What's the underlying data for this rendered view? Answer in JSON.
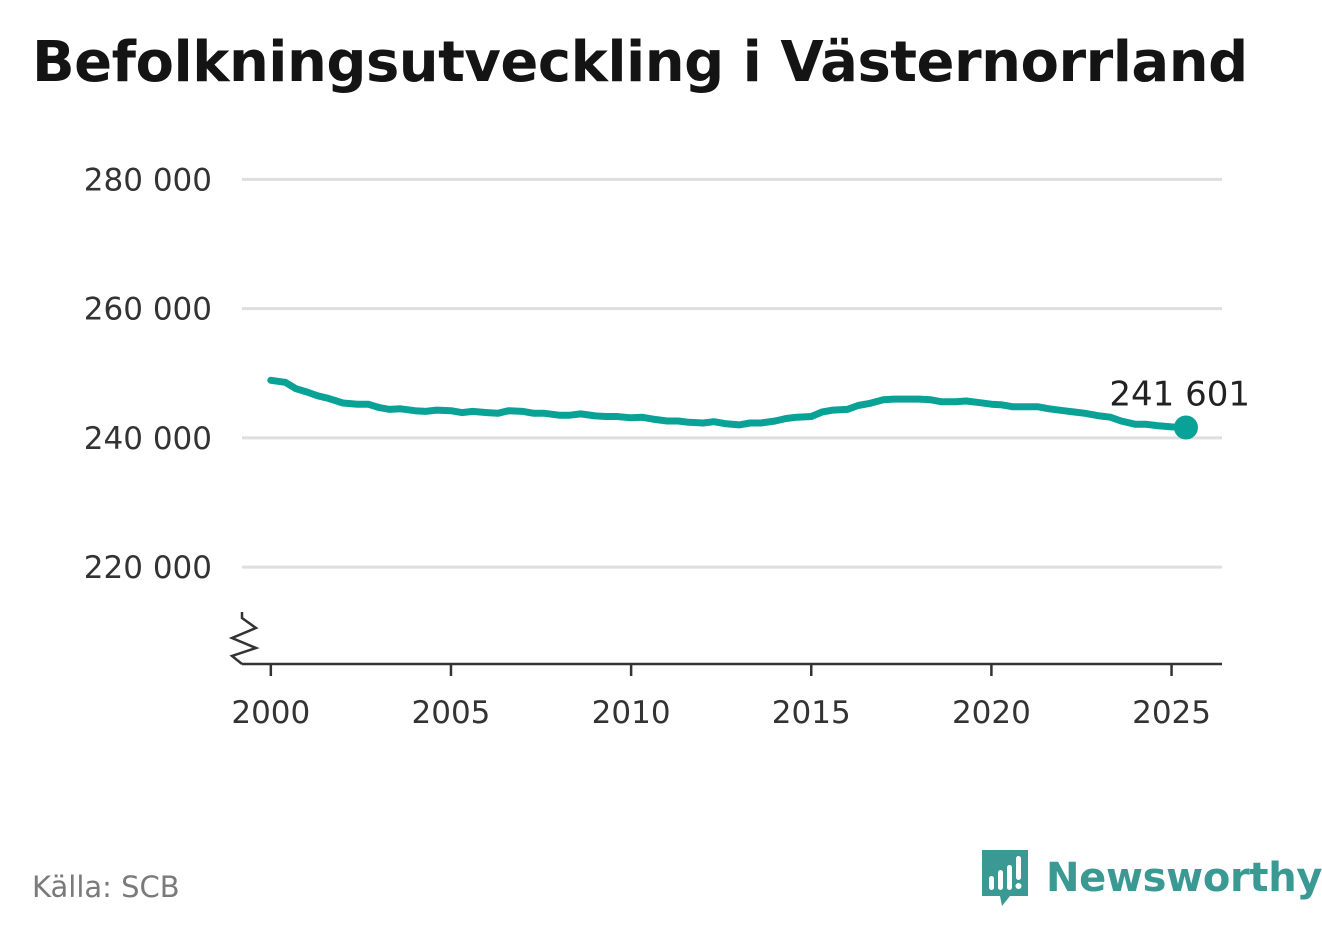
{
  "title": "Befolkningsutveckling i Västernorrland",
  "source": "Källa: SCB",
  "brand": {
    "name": "Newsworthy",
    "icon": "newsworthy-logo-icon",
    "color": "#3a9a93"
  },
  "chart_data": {
    "type": "line",
    "title": "Befolkningsutveckling i Västernorrland",
    "xlabel": "",
    "ylabel": "",
    "xlim": [
      1999.2,
      2026.4
    ],
    "ylim": [
      205000,
      283000
    ],
    "y_ticks": [
      220000,
      240000,
      260000,
      280000
    ],
    "y_tick_labels": [
      "220 000",
      "240 000",
      "260 000",
      "280 000"
    ],
    "x_ticks": [
      2000,
      2005,
      2010,
      2015,
      2020,
      2025
    ],
    "x_tick_labels": [
      "2000",
      "2005",
      "2010",
      "2015",
      "2020",
      "2025"
    ],
    "axis_break": true,
    "grid": "horizontal",
    "legend": "none",
    "line_color": "#0aa296",
    "end_label": "241 601",
    "series": [
      {
        "x": [
          2000.0,
          2000.4,
          2000.7,
          2001.0,
          2001.3,
          2001.6,
          2002.0,
          2002.4,
          2002.7,
          2003.0,
          2003.3,
          2003.6,
          2004.0,
          2004.3,
          2004.6,
          2005.0,
          2005.3,
          2005.6,
          2006.0,
          2006.3,
          2006.6,
          2007.0,
          2007.3,
          2007.6,
          2008.0,
          2008.3,
          2008.6,
          2009.0,
          2009.3,
          2009.6,
          2010.0,
          2010.3,
          2010.6,
          2011.0,
          2011.3,
          2011.6,
          2012.0,
          2012.3,
          2012.6,
          2013.0,
          2013.3,
          2013.6,
          2014.0,
          2014.3,
          2014.6,
          2015.0,
          2015.3,
          2015.6,
          2016.0,
          2016.3,
          2016.6,
          2017.0,
          2017.3,
          2017.6,
          2018.0,
          2018.3,
          2018.6,
          2019.0,
          2019.3,
          2019.6,
          2020.0,
          2020.3,
          2020.6,
          2021.0,
          2021.3,
          2021.6,
          2022.0,
          2022.3,
          2022.6,
          2023.0,
          2023.3,
          2023.6,
          2024.0,
          2024.3,
          2024.6,
          2025.0,
          2025.4
        ],
        "values": [
          248900,
          248600,
          247600,
          247100,
          246500,
          246100,
          245400,
          245200,
          245200,
          244700,
          244400,
          244500,
          244200,
          244100,
          244300,
          244200,
          243900,
          244100,
          243900,
          243800,
          244200,
          244100,
          243800,
          243800,
          243500,
          243500,
          243700,
          243400,
          243300,
          243300,
          243100,
          243200,
          242900,
          242600,
          242600,
          242400,
          242300,
          242500,
          242200,
          242000,
          242300,
          242300,
          242600,
          243000,
          243200,
          243300,
          244000,
          244300,
          244400,
          245000,
          245300,
          245900,
          246000,
          246000,
          246000,
          245900,
          245600,
          245600,
          245700,
          245500,
          245200,
          245100,
          244800,
          244800,
          244800,
          244500,
          244200,
          244000,
          243800,
          243400,
          243200,
          242600,
          242100,
          242100,
          241900,
          241700,
          241601
        ]
      }
    ]
  }
}
